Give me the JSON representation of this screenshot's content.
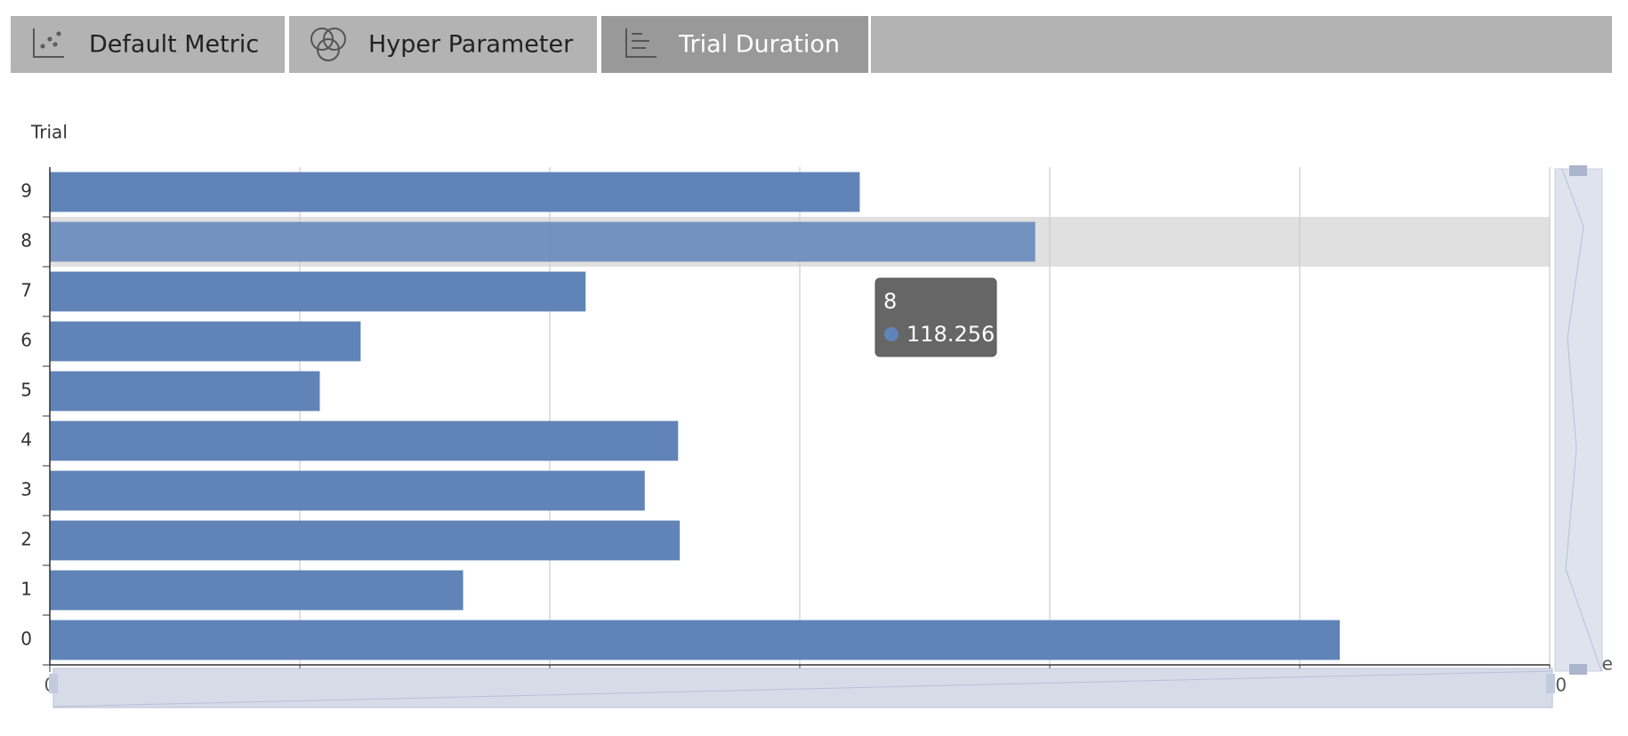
{
  "tabs": [
    "Default Metric",
    "Hyper Parameter",
    "Trial Duration"
  ],
  "chart_data": {
    "type": "bar",
    "orientation": "horizontal",
    "y_label": "Trial",
    "x_label": "Time",
    "categories": [
      "0",
      "1",
      "2",
      "3",
      "4",
      "5",
      "6",
      "7",
      "8",
      "9"
    ],
    "series": [
      {
        "name": "Trial Duration",
        "color": "#6084b8",
        "values": [
          154.8,
          49.6,
          75.6,
          71.4,
          75.4,
          32.4,
          37.3,
          64.3,
          118.256,
          97.2
        ]
      }
    ],
    "xlim": [
      0,
      180
    ],
    "xticks": [
      0,
      30,
      60,
      90,
      120,
      150,
      180
    ],
    "grid": true
  }
}
